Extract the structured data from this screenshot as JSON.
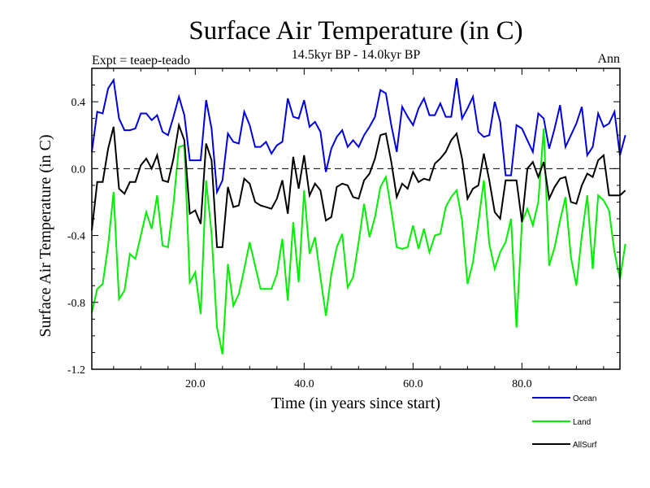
{
  "chart_data": {
    "type": "line",
    "title": "Surface Air Temperature (in C)",
    "subtitle": "14.5kyr BP - 14.0kyr BP",
    "left_note": "Expt = teaep-teado",
    "right_note": "Ann",
    "xlabel": "Time (in years since start)",
    "ylabel": "Surface Air Temperature (in C)",
    "xlim": [
      1,
      98
    ],
    "ylim": [
      -1.2,
      0.6
    ],
    "x_ticks": [
      20,
      40,
      60,
      80
    ],
    "x_tick_labels": [
      "20.0",
      "40.0",
      "60.0",
      "80.0"
    ],
    "y_ticks": [
      -1.2,
      -0.8,
      -0.4,
      0.0,
      0.4
    ],
    "y_tick_labels": [
      "-1.2",
      "-0.8",
      "-0.4",
      "0.0",
      "0.4"
    ],
    "reference_line": 0.0,
    "series": [
      {
        "name": "Ocean",
        "color": "#0000dd",
        "values": [
          0.1,
          0.34,
          0.33,
          0.48,
          0.53,
          0.3,
          0.23,
          0.23,
          0.24,
          0.33,
          0.33,
          0.29,
          0.32,
          0.22,
          0.2,
          0.31,
          0.43,
          0.32,
          0.05,
          0.05,
          0.05,
          0.41,
          0.24,
          -0.14,
          -0.07,
          0.21,
          0.16,
          0.15,
          0.34,
          0.26,
          0.13,
          0.13,
          0.16,
          0.09,
          0.14,
          0.16,
          0.42,
          0.31,
          0.3,
          0.41,
          0.25,
          0.28,
          0.22,
          -0.02,
          0.12,
          0.19,
          0.23,
          0.13,
          0.17,
          0.13,
          0.2,
          0.25,
          0.31,
          0.47,
          0.45,
          0.26,
          0.1,
          0.37,
          0.31,
          0.26,
          0.36,
          0.42,
          0.32,
          0.32,
          0.39,
          0.31,
          0.31,
          0.54,
          0.3,
          0.36,
          0.43,
          0.22,
          0.19,
          0.2,
          0.4,
          0.28,
          -0.04,
          -0.04,
          0.26,
          0.24,
          0.17,
          0.1,
          0.33,
          0.3,
          0.12,
          0.24,
          0.38,
          0.13,
          0.2,
          0.27,
          0.37,
          0.08,
          0.13,
          0.33,
          0.25,
          0.27,
          0.34,
          0.08,
          0.2
        ]
      },
      {
        "name": "Land",
        "color": "#00ee00",
        "values": [
          -0.86,
          -0.72,
          -0.69,
          -0.46,
          -0.14,
          -0.78,
          -0.73,
          -0.51,
          -0.54,
          -0.4,
          -0.26,
          -0.36,
          -0.16,
          -0.46,
          -0.47,
          -0.21,
          0.13,
          0.14,
          -0.68,
          -0.62,
          -0.87,
          -0.07,
          -0.39,
          -0.95,
          -1.11,
          -0.57,
          -0.82,
          -0.75,
          -0.6,
          -0.44,
          -0.58,
          -0.72,
          -0.72,
          -0.72,
          -0.63,
          -0.42,
          -0.79,
          -0.32,
          -0.68,
          -0.13,
          -0.51,
          -0.41,
          -0.65,
          -0.88,
          -0.63,
          -0.47,
          -0.39,
          -0.71,
          -0.65,
          -0.44,
          -0.21,
          -0.41,
          -0.29,
          -0.11,
          -0.05,
          -0.25,
          -0.47,
          -0.48,
          -0.47,
          -0.34,
          -0.48,
          -0.36,
          -0.5,
          -0.4,
          -0.39,
          -0.23,
          -0.17,
          -0.13,
          -0.31,
          -0.69,
          -0.56,
          -0.32,
          -0.07,
          -0.45,
          -0.6,
          -0.5,
          -0.44,
          -0.3,
          -0.95,
          -0.32,
          -0.24,
          -0.34,
          -0.2,
          0.24,
          -0.58,
          -0.47,
          -0.31,
          -0.17,
          -0.53,
          -0.7,
          -0.4,
          -0.16,
          -0.6,
          -0.16,
          -0.19,
          -0.25,
          -0.5,
          -0.66,
          -0.45
        ]
      },
      {
        "name": "AllSurf",
        "color": "#000000",
        "values": [
          -0.37,
          -0.08,
          -0.08,
          0.12,
          0.25,
          -0.12,
          -0.15,
          -0.08,
          -0.08,
          0.02,
          0.06,
          0.0,
          0.08,
          -0.07,
          -0.08,
          0.06,
          0.26,
          0.17,
          -0.27,
          -0.25,
          -0.33,
          0.15,
          0.05,
          -0.47,
          -0.47,
          -0.11,
          -0.23,
          -0.22,
          -0.06,
          -0.09,
          -0.2,
          -0.22,
          -0.23,
          -0.24,
          -0.18,
          -0.07,
          -0.27,
          0.07,
          -0.12,
          0.08,
          -0.16,
          -0.09,
          -0.13,
          -0.31,
          -0.29,
          -0.11,
          -0.09,
          -0.1,
          -0.17,
          -0.18,
          -0.07,
          -0.03,
          0.06,
          0.2,
          0.21,
          0.04,
          -0.17,
          -0.09,
          -0.12,
          -0.02,
          -0.08,
          -0.06,
          -0.07,
          0.03,
          0.06,
          0.1,
          0.17,
          0.21,
          0.06,
          -0.18,
          -0.12,
          -0.1,
          0.09,
          -0.07,
          -0.26,
          -0.3,
          -0.07,
          -0.07,
          -0.07,
          -0.32,
          0.0,
          0.04,
          -0.05,
          0.04,
          -0.18,
          -0.11,
          -0.06,
          -0.05,
          -0.2,
          -0.21,
          -0.1,
          -0.03,
          -0.05,
          0.05,
          0.08,
          -0.16,
          -0.16,
          -0.16,
          -0.13
        ]
      }
    ],
    "legend": [
      {
        "label": "Ocean",
        "color": "#0000dd"
      },
      {
        "label": "Land",
        "color": "#00ee00"
      },
      {
        "label": "AllSurf",
        "color": "#000000"
      }
    ]
  }
}
